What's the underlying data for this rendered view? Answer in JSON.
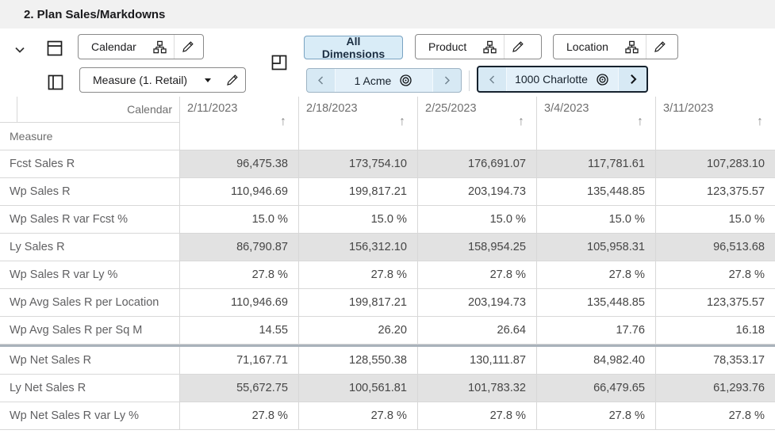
{
  "title": "2. Plan Sales/Markdowns",
  "toolbar": {
    "row_axis": {
      "label": "Calendar"
    },
    "col_axis": {
      "label": "Measure (1. Retail)"
    },
    "all_dimensions_label": "All Dimensions",
    "product_label": "Product",
    "location_label": "Location",
    "product_position": "1 Acme",
    "location_position": "1000 Charlotte",
    "icons": {
      "collapse": "chevron-down-icon",
      "row_axis_layout": "rows-layout-icon",
      "col_axis_layout": "columns-layout-icon",
      "freeze_corner": "corner-pane-icon",
      "hierarchy": "hierarchy-icon",
      "edit": "pencil-icon",
      "dropdown": "caret-down-icon",
      "position_target": "bullseye-icon",
      "prev": "chevron-left-icon",
      "next": "chevron-right-icon"
    }
  },
  "grid": {
    "row_dimension_label": "Calendar",
    "col_dimension_label": "Measure",
    "sort_icon": "↑",
    "columns": [
      "2/11/2023",
      "2/18/2023",
      "2/25/2023",
      "3/4/2023",
      "3/11/2023"
    ],
    "rows": [
      {
        "label": "Fcst Sales R",
        "readonly": true,
        "section_start": false,
        "values": [
          "96,475.38",
          "173,754.10",
          "176,691.07",
          "117,781.61",
          "107,283.10"
        ]
      },
      {
        "label": "Wp Sales R",
        "readonly": false,
        "section_start": false,
        "values": [
          "110,946.69",
          "199,817.21",
          "203,194.73",
          "135,448.85",
          "123,375.57"
        ]
      },
      {
        "label": "Wp Sales R var Fcst %",
        "readonly": false,
        "section_start": false,
        "values": [
          "15.0 %",
          "15.0 %",
          "15.0 %",
          "15.0 %",
          "15.0 %"
        ]
      },
      {
        "label": "Ly Sales R",
        "readonly": true,
        "section_start": false,
        "values": [
          "86,790.87",
          "156,312.10",
          "158,954.25",
          "105,958.31",
          "96,513.68"
        ]
      },
      {
        "label": "Wp Sales R var Ly %",
        "readonly": false,
        "section_start": false,
        "values": [
          "27.8 %",
          "27.8 %",
          "27.8 %",
          "27.8 %",
          "27.8 %"
        ]
      },
      {
        "label": "Wp Avg Sales R per Location",
        "readonly": false,
        "section_start": false,
        "values": [
          "110,946.69",
          "199,817.21",
          "203,194.73",
          "135,448.85",
          "123,375.57"
        ]
      },
      {
        "label": "Wp Avg Sales R per Sq M",
        "readonly": false,
        "section_start": false,
        "values": [
          "14.55",
          "26.20",
          "26.64",
          "17.76",
          "16.18"
        ]
      },
      {
        "label": "Wp Net Sales R",
        "readonly": false,
        "section_start": true,
        "values": [
          "71,167.71",
          "128,550.38",
          "130,111.87",
          "84,982.40",
          "78,353.17"
        ]
      },
      {
        "label": "Ly Net Sales R",
        "readonly": true,
        "section_start": false,
        "values": [
          "55,672.75",
          "100,561.81",
          "101,783.32",
          "66,479.65",
          "61,293.76"
        ]
      },
      {
        "label": "Wp Net Sales R var Ly %",
        "readonly": false,
        "section_start": false,
        "values": [
          "27.8 %",
          "27.8 %",
          "27.8 %",
          "27.8 %",
          "27.8 %"
        ]
      }
    ]
  },
  "colors": {
    "titlebar_bg": "#f1f1f1",
    "selected_blue_bg": "#d9ecf7",
    "selected_blue_border": "#79a3c2",
    "pill_bg": "#d7e9f4",
    "pill_focus_border": "#16222e",
    "readonly_cell_bg": "#e2e2e2",
    "grid_border": "#d8d8d8",
    "section_separator": "#a9b2bb"
  }
}
